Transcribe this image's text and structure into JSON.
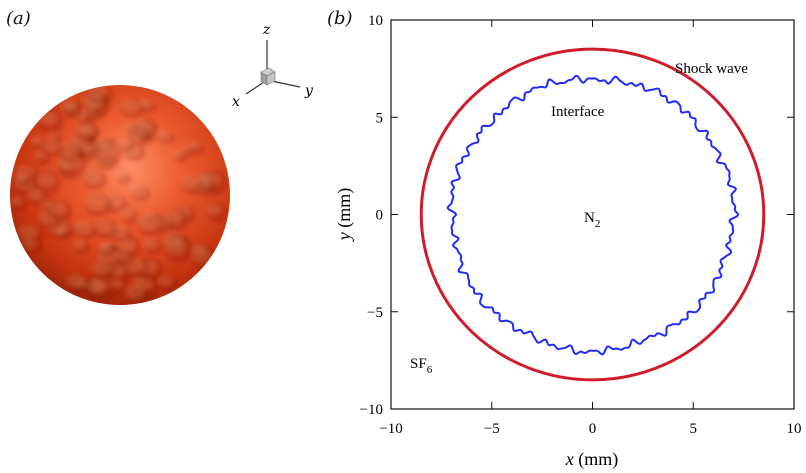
{
  "panels": {
    "a": {
      "label": "(a)"
    },
    "b": {
      "label": "(b)"
    }
  },
  "triad": {
    "z": "z",
    "x": "x",
    "y": "y"
  },
  "annotations": {
    "shock": "Shock wave",
    "interface": "Interface",
    "inner_gas": "N",
    "inner_sub": "2",
    "outer_gas": "SF",
    "outer_sub": "6"
  },
  "colors": {
    "sphere": "#d23a16",
    "shock": "#d01c2a",
    "interface": "#1f2cff"
  },
  "chart_data": {
    "type": "line",
    "xlabel_var": "x",
    "xlabel_unit": " (mm)",
    "ylabel_var": "y",
    "ylabel_unit": " (mm)",
    "xlim": [
      -10,
      10
    ],
    "ylim": [
      -10,
      10
    ],
    "xticks": [
      -10,
      -5,
      0,
      5,
      10
    ],
    "yticks": [
      -10,
      -5,
      0,
      5,
      10
    ],
    "x_tick_labels": [
      "−10",
      "−5",
      "0",
      "5",
      "10"
    ],
    "y_tick_labels": [
      "−10",
      "−5",
      "0",
      "5",
      "10"
    ],
    "grid": false,
    "series": [
      {
        "name": "Shock wave",
        "shape": "circle",
        "center": [
          0,
          0
        ],
        "radius": 8.5
      },
      {
        "name": "Interface",
        "shape": "perturbed circle",
        "center": [
          0,
          0
        ],
        "mean_radius": 7.0
      }
    ]
  }
}
